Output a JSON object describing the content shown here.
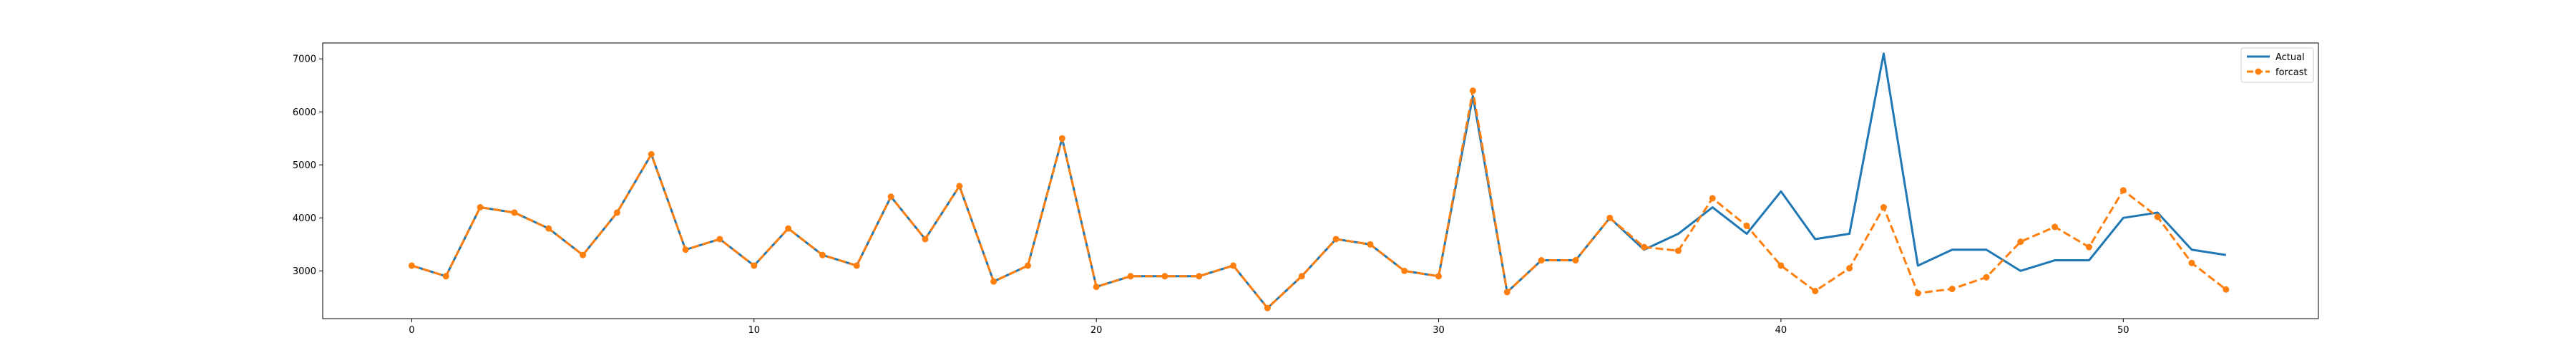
{
  "chart_data": {
    "type": "line",
    "title": "",
    "xlabel": "",
    "ylabel": "",
    "xlim": [
      -2.6,
      55.7
    ],
    "ylim": [
      2100,
      7300
    ],
    "x_ticks": [
      0,
      10,
      20,
      30,
      40,
      50
    ],
    "y_ticks": [
      3000,
      4000,
      5000,
      6000,
      7000
    ],
    "grid": false,
    "legend_position": "top-right",
    "x": [
      0,
      1,
      2,
      3,
      4,
      5,
      6,
      7,
      8,
      9,
      10,
      11,
      12,
      13,
      14,
      15,
      16,
      17,
      18,
      19,
      20,
      21,
      22,
      23,
      24,
      25,
      26,
      27,
      28,
      29,
      30,
      31,
      32,
      33,
      34,
      35,
      36,
      37,
      38,
      39,
      40,
      41,
      42,
      43,
      44,
      45,
      46,
      47,
      48,
      49,
      50,
      51,
      52,
      53
    ],
    "series": [
      {
        "name": "Actual",
        "color": "#1f77b4",
        "style": "solid",
        "marker": "none",
        "values": [
          3100,
          2900,
          4200,
          4100,
          3800,
          3300,
          4100,
          5200,
          3400,
          3600,
          3100,
          3800,
          3300,
          3100,
          4400,
          3600,
          4600,
          2800,
          3100,
          5500,
          2700,
          2900,
          2900,
          2900,
          3100,
          2300,
          2900,
          3600,
          3500,
          3000,
          2900,
          6300,
          2600,
          3200,
          3200,
          4000,
          3400,
          3700,
          4200,
          3700,
          4500,
          3600,
          3700,
          7100,
          3100,
          3400,
          3400,
          3000,
          3200,
          3200,
          4000,
          4100,
          3400,
          3300
        ]
      },
      {
        "name": "forcast",
        "color": "#ff7f0e",
        "style": "dashed",
        "marker": "circle",
        "values": [
          3100,
          2900,
          4200,
          4100,
          3800,
          3300,
          4100,
          5200,
          3400,
          3600,
          3100,
          3800,
          3300,
          3100,
          4400,
          3600,
          4600,
          2800,
          3100,
          5500,
          2700,
          2900,
          2900,
          2900,
          3100,
          2300,
          2900,
          3600,
          3500,
          3000,
          2900,
          6400,
          2600,
          3200,
          3200,
          4000,
          3450,
          3380,
          4370,
          3850,
          3100,
          2620,
          3050,
          4200,
          2580,
          2660,
          2880,
          3550,
          3830,
          3450,
          4520,
          4020,
          3150,
          2650
        ]
      }
    ]
  }
}
